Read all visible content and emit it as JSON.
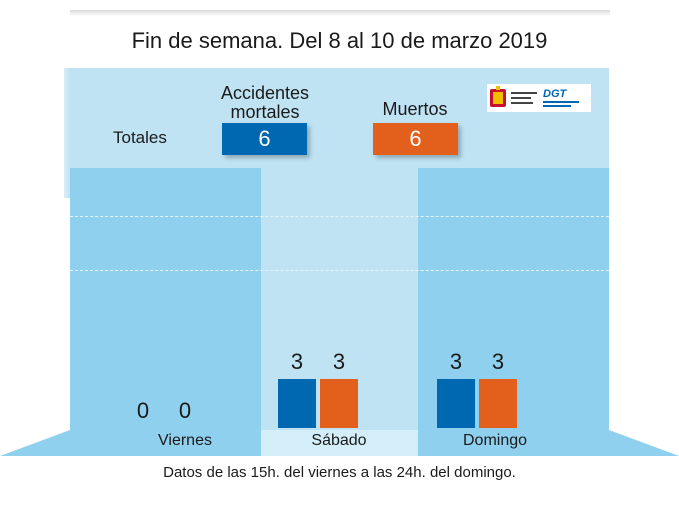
{
  "title": "Fin de semana. Del 8 al 10 de marzo 2019",
  "totals_label": "Totales",
  "footnote": "Datos de las 15h. del viernes a las 24h. del domingo.",
  "logo": {
    "dgt_text": "DGT",
    "icons": [
      "spain-coat-of-arms-icon",
      "dgt-logo-icon"
    ]
  },
  "colors": {
    "accidentes": "#0067b1",
    "muertos": "#e2601b",
    "panel": "#bfe3f3",
    "col_dark": "#8fd0ee"
  },
  "chart_data": {
    "type": "bar",
    "title": "Fin de semana. Del 8 al 10 de marzo 2019",
    "categories": [
      "Viernes",
      "Sábado",
      "Domingo"
    ],
    "series": [
      {
        "name": "Accidentes mortales",
        "values": [
          0,
          3,
          3
        ],
        "total": 6,
        "color": "#0067b1"
      },
      {
        "name": "Muertos",
        "values": [
          0,
          3,
          3
        ],
        "total": 6,
        "color": "#e2601b"
      }
    ],
    "grid": true,
    "legend_placement": "top"
  }
}
